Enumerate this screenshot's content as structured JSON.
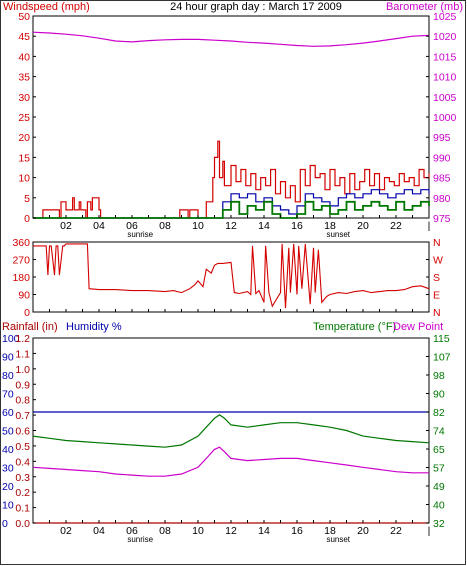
{
  "colors": {
    "red": "#d40000",
    "magenta": "#cc00cc",
    "blue": "#0000aa",
    "green": "#007700",
    "darkred": "#aa0000",
    "text": "#000000"
  },
  "top_panel": {
    "left_label": "Windspeed (mph)",
    "title": "24 hour graph day : March 17 2009",
    "right_label": "Barometer (mb)"
  },
  "bottom_panel": {
    "rainfall_label": "Rainfall (in)",
    "humidity_label": "Humidity %",
    "temperature_label": "Temperature (°F)",
    "dewpoint_label": "Dew Point"
  },
  "x_axis": {
    "tick_labels": [
      "02",
      "04",
      "06",
      "08",
      "10",
      "12",
      "14",
      "16",
      "18",
      "20",
      "22",
      "|"
    ],
    "sunrise_label": "sunrise",
    "sunset_label": "sunset"
  },
  "chart_data": [
    {
      "type": "line",
      "name": "wind-barometer",
      "x_unit": "hour",
      "xlim": [
        0,
        24
      ],
      "y_left_label": "Windspeed (mph)",
      "y_left_ticks": [
        "0",
        "5",
        "10",
        "15",
        "20",
        "25",
        "30",
        "35",
        "40",
        "45",
        "50"
      ],
      "ylim_left": [
        0,
        50
      ],
      "y_right_label": "Barometer (mb)",
      "y_right_ticks": [
        "975",
        "980",
        "985",
        "990",
        "995",
        "1000",
        "1005",
        "1010",
        "1015",
        "1020",
        "1025"
      ],
      "ylim_right": [
        975,
        1025
      ],
      "series": [
        {
          "name": "Barometer (mb)",
          "axis": "right",
          "color": "#cc00cc",
          "x": [
            0,
            1,
            2,
            3,
            4,
            5,
            6,
            7,
            8,
            9,
            10,
            11,
            12,
            13,
            14,
            15,
            16,
            17,
            18,
            19,
            20,
            21,
            22,
            23,
            24
          ],
          "y": [
            1021,
            1020.8,
            1020.5,
            1020.1,
            1019.5,
            1018.8,
            1018.6,
            1018.9,
            1019.1,
            1019.2,
            1019.2,
            1019,
            1018.8,
            1018.5,
            1018.3,
            1018,
            1017.7,
            1017.5,
            1017.6,
            1017.9,
            1018.3,
            1018.8,
            1019.4,
            1020,
            1020.2
          ]
        },
        {
          "name": "Gust",
          "axis": "left",
          "color": "#d40000",
          "x": [
            0,
            0.5,
            0.6,
            1,
            1.6,
            1.7,
            2,
            2.4,
            2.5,
            2.8,
            2.9,
            3.2,
            3.3,
            3.5,
            3.6,
            4,
            4.1,
            4.5,
            5,
            6,
            7,
            8,
            8.8,
            8.9,
            9.4,
            9.5,
            10,
            10.5,
            10.9,
            11,
            11.2,
            11.3,
            11.5,
            11.6,
            12,
            12.3,
            12.6,
            12.9,
            13.2,
            13.5,
            13.8,
            14.1,
            14.4,
            14.7,
            15,
            15.3,
            15.6,
            15.9,
            16.2,
            16.5,
            16.8,
            17.1,
            17.4,
            17.7,
            18,
            18.3,
            18.6,
            18.9,
            19.2,
            19.5,
            19.8,
            20.1,
            20.4,
            20.7,
            21,
            21.3,
            21.6,
            21.9,
            22.2,
            22.5,
            22.8,
            23.1,
            23.4,
            23.7,
            24
          ],
          "y": [
            0,
            0,
            2,
            2,
            0,
            4,
            2,
            5,
            2,
            4,
            2,
            0,
            4,
            2,
            5,
            2,
            0,
            0,
            0,
            0,
            0,
            0,
            0,
            2,
            0,
            2,
            0,
            4,
            10,
            15,
            19,
            10,
            14,
            8,
            13,
            9,
            12,
            8,
            11,
            7,
            10,
            8,
            12,
            6,
            9,
            5,
            8,
            4,
            12,
            8,
            13,
            10,
            11,
            7,
            12,
            8,
            10,
            6,
            11,
            7,
            9,
            12,
            8,
            11,
            7,
            10,
            9,
            8,
            11,
            9,
            10,
            8,
            12,
            10,
            11
          ]
        },
        {
          "name": "Average",
          "axis": "left",
          "color": "#0000aa",
          "x": [
            0,
            11,
            11.5,
            12,
            12.5,
            13,
            13.5,
            14,
            14.5,
            15,
            15.5,
            16,
            16.5,
            17,
            17.5,
            18,
            18.5,
            19,
            19.5,
            20,
            20.5,
            21,
            21.5,
            22,
            22.5,
            23,
            23.5,
            24
          ],
          "y": [
            0,
            0,
            4,
            6,
            5,
            6,
            4,
            5,
            3,
            2,
            1,
            3,
            6,
            5,
            4,
            3,
            5,
            6,
            5,
            6,
            7,
            6,
            5,
            6,
            7,
            6,
            7,
            6
          ]
        },
        {
          "name": "Wind",
          "axis": "left",
          "color": "#007700",
          "x": [
            0,
            11,
            11.5,
            12,
            12.5,
            13,
            13.5,
            14,
            14.5,
            15,
            15.5,
            16,
            16.5,
            17,
            17.5,
            18,
            18.5,
            19,
            19.5,
            20,
            20.5,
            21,
            21.5,
            22,
            22.5,
            23,
            23.5,
            24
          ],
          "y": [
            0,
            0,
            2,
            4,
            1,
            3,
            2,
            4,
            1,
            0,
            0,
            1,
            4,
            2,
            3,
            1,
            2,
            4,
            2,
            3,
            4,
            3,
            2,
            4,
            2,
            3,
            4,
            3
          ]
        }
      ]
    },
    {
      "type": "line",
      "name": "wind-direction",
      "x_unit": "hour",
      "xlim": [
        0,
        24
      ],
      "y_left_ticks": [
        "360",
        "270",
        "180",
        "90",
        "0"
      ],
      "ylim": [
        0,
        360
      ],
      "y_right_ticks": [
        "N",
        "W",
        "S",
        "E",
        "N"
      ],
      "series": [
        {
          "name": "Direction",
          "color": "#d40000",
          "x": [
            0,
            0.8,
            0.9,
            1,
            1.1,
            1.3,
            1.4,
            1.5,
            1.6,
            1.8,
            1.9,
            2,
            3,
            3.3,
            3.4,
            4,
            5,
            6,
            7,
            8,
            8.5,
            9,
            9.5,
            9.8,
            10,
            10.3,
            10.5,
            10.8,
            11,
            11.2,
            11.5,
            12,
            12.2,
            12.5,
            13,
            13.2,
            13.3,
            13.5,
            13.7,
            14,
            14.1,
            14.3,
            14.5,
            15,
            15.1,
            15.3,
            15.5,
            15.6,
            15.8,
            16,
            16.1,
            16.3,
            16.5,
            16.8,
            17,
            17.1,
            17.3,
            17.5,
            17.8,
            18,
            18.5,
            19,
            19.5,
            20,
            20.5,
            21,
            21.5,
            22,
            22.5,
            23,
            23.5,
            24
          ],
          "y": [
            340,
            340,
            190,
            340,
            340,
            190,
            340,
            340,
            190,
            340,
            340,
            350,
            350,
            350,
            120,
            115,
            115,
            110,
            110,
            105,
            110,
            100,
            120,
            140,
            160,
            130,
            220,
            200,
            240,
            250,
            250,
            255,
            100,
            95,
            105,
            90,
            340,
            95,
            110,
            50,
            340,
            100,
            30,
            100,
            350,
            20,
            330,
            100,
            350,
            90,
            340,
            120,
            350,
            40,
            330,
            100,
            320,
            50,
            80,
            90,
            100,
            95,
            105,
            110,
            100,
            105,
            110,
            110,
            115,
            130,
            135,
            120
          ]
        }
      ]
    },
    {
      "type": "line",
      "name": "rain-humidity-temp",
      "x_unit": "hour",
      "xlim": [
        0,
        24
      ],
      "rain_ticks": [
        "0.0",
        "0.1",
        "0.2",
        "0.3",
        "0.4",
        "0.5",
        "0.6",
        "0.7",
        "0.8",
        "0.9",
        "1.0",
        "1.1",
        "1.2"
      ],
      "ylim_rain": [
        0,
        1.2
      ],
      "humidity_ticks": [
        "0",
        "10",
        "20",
        "30",
        "40",
        "50",
        "60",
        "70",
        "80",
        "90",
        "100"
      ],
      "ylim_humidity": [
        0,
        100
      ],
      "temperature_ticks": [
        "32",
        "40",
        "49",
        "57",
        "65",
        "74",
        "82",
        "90",
        "98",
        "107",
        "115"
      ],
      "ylim_temperature": [
        32,
        115
      ],
      "series": [
        {
          "name": "Rainfall (in)",
          "axis": "rain",
          "color": "#aa0000",
          "x": [
            0,
            24
          ],
          "y": [
            0,
            0
          ]
        },
        {
          "name": "Humidity %",
          "axis": "humidity",
          "color": "#0000aa",
          "x": [
            0,
            24
          ],
          "y": [
            60,
            60
          ]
        },
        {
          "name": "Temperature (°F)",
          "axis": "temperature",
          "color": "#007700",
          "x": [
            0,
            1,
            2,
            3,
            4,
            5,
            6,
            7,
            8,
            9,
            10,
            10.5,
            11,
            11.3,
            11.6,
            12,
            13,
            14,
            15,
            16,
            17,
            18,
            19,
            20,
            21,
            22,
            23,
            24
          ],
          "y": [
            71,
            70,
            69,
            68.5,
            68,
            67.5,
            67,
            66.5,
            66,
            67,
            71,
            75,
            79,
            80.5,
            79,
            76,
            75,
            76,
            77,
            77,
            76,
            75,
            73.5,
            71,
            70,
            69,
            68.5,
            68
          ]
        },
        {
          "name": "Dew Point",
          "axis": "temperature",
          "color": "#cc00cc",
          "x": [
            0,
            1,
            2,
            3,
            4,
            5,
            6,
            7,
            8,
            9,
            10,
            10.5,
            11,
            11.3,
            11.6,
            12,
            13,
            14,
            15,
            16,
            17,
            18,
            19,
            20,
            21,
            22,
            23,
            24
          ],
          "y": [
            57,
            56.5,
            56,
            55.5,
            55,
            54,
            53.5,
            53,
            53,
            54,
            57,
            61,
            65,
            66,
            64,
            61,
            60,
            60.5,
            61,
            61,
            60,
            59,
            58,
            57,
            56,
            55,
            54.5,
            54.5
          ]
        }
      ]
    }
  ]
}
